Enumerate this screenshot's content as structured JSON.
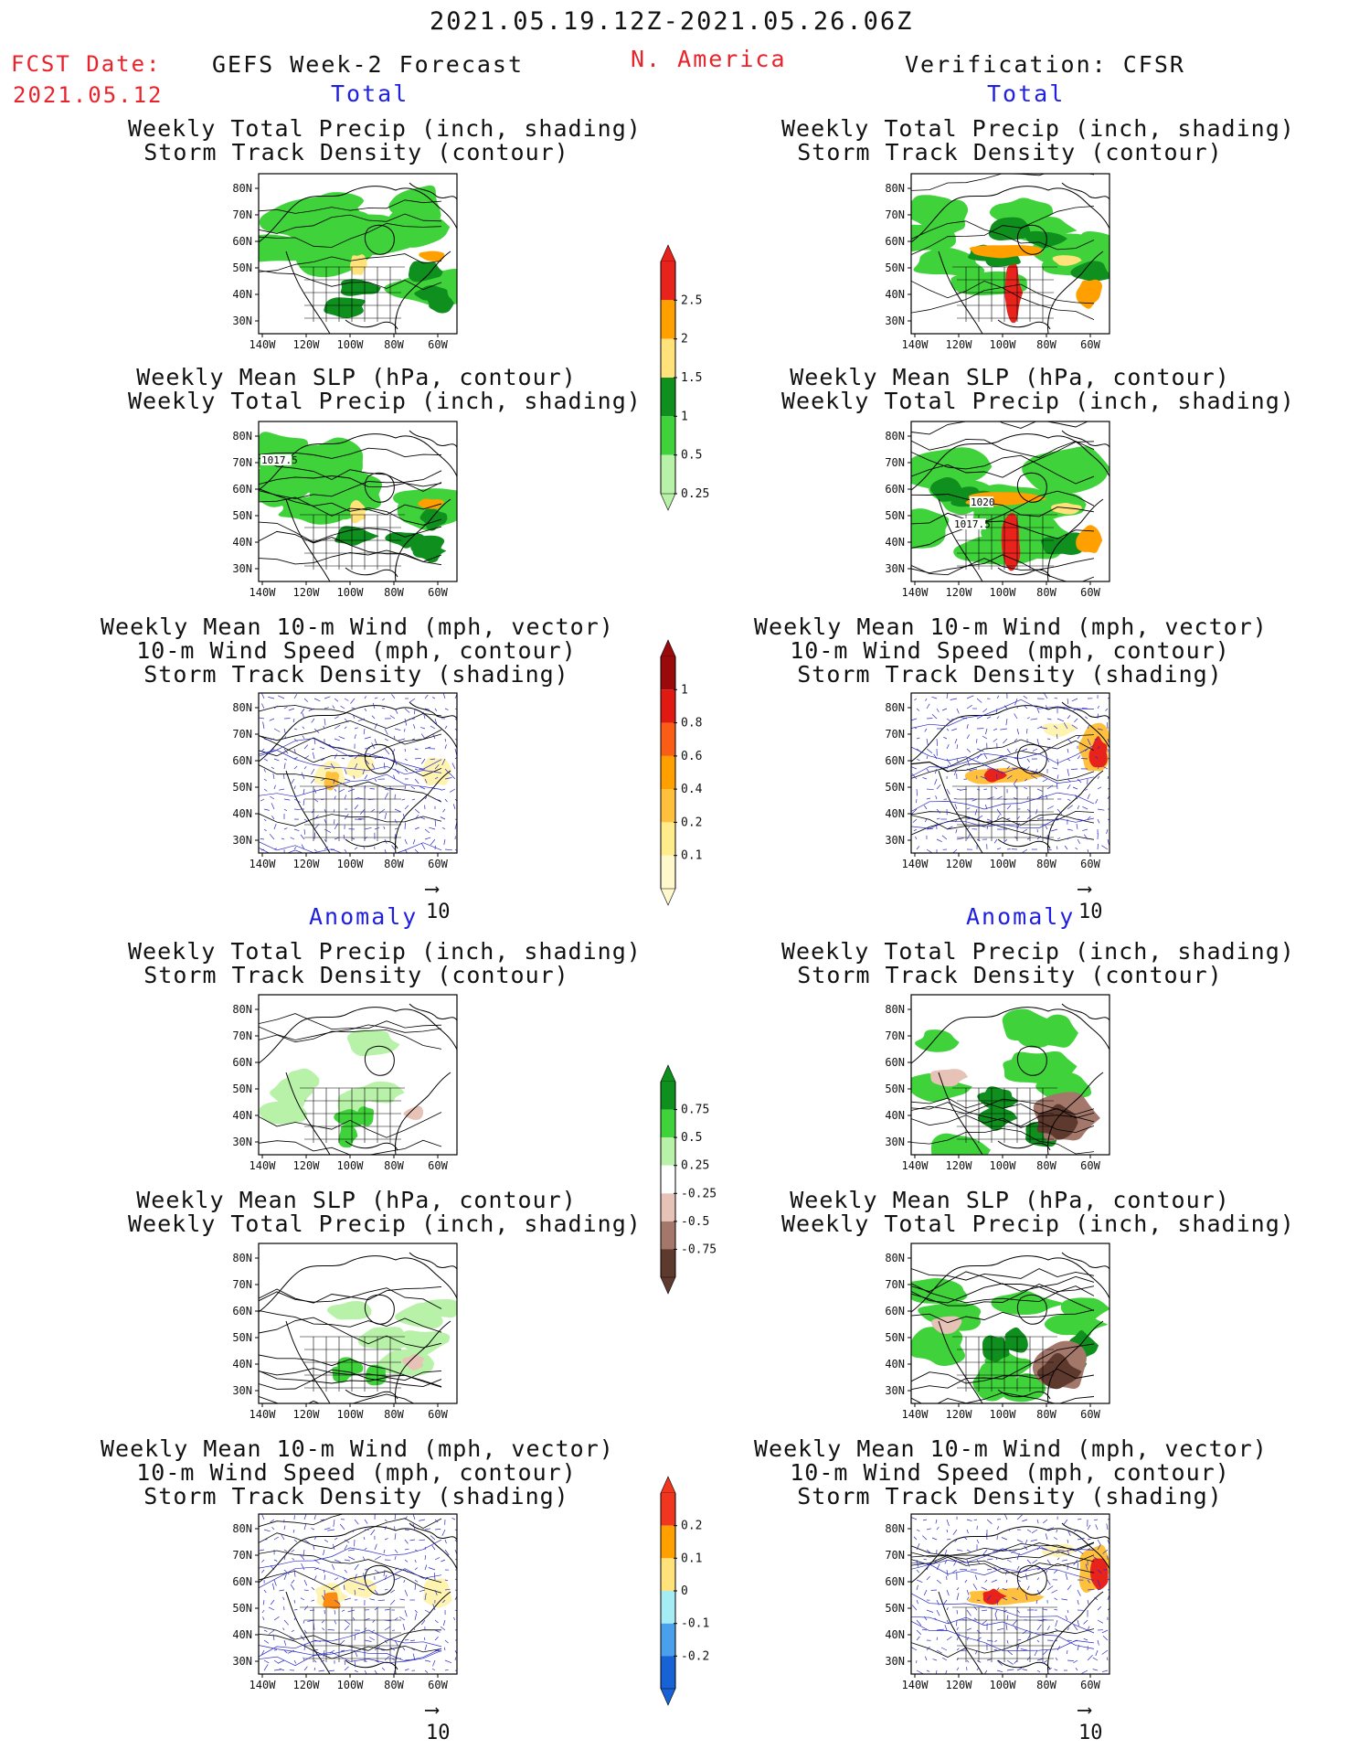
{
  "header": {
    "date_range": "2021.05.19.12Z-2021.05.26.06Z",
    "fcst_label": "FCST Date:",
    "fcst_date": "2021.05.12",
    "left_title": "GEFS Week-2 Forecast",
    "region": "N. America",
    "right_title": "Verification: CFSR"
  },
  "sections": {
    "total": "Total",
    "anomaly": "Anomaly"
  },
  "titles": {
    "precip_track": [
      "Weekly Total Precip (inch, shading)",
      "Storm Track Density (contour)"
    ],
    "slp_precip": [
      "Weekly Mean SLP (hPa, contour)",
      "Weekly Total Precip (inch, shading)"
    ],
    "wind_track": [
      "Weekly Mean 10-m Wind (mph, vector)",
      "10-m Wind Speed (mph, contour)",
      "Storm Track Density (shading)"
    ]
  },
  "axes": {
    "lat_ticks": [
      "80N",
      "70N",
      "60N",
      "50N",
      "40N",
      "30N"
    ],
    "lon_ticks": [
      "140W",
      "120W",
      "100W",
      "80W",
      "60W"
    ]
  },
  "vector_ref": "10",
  "contour_labels": {
    "fcst_slp": "1017.5",
    "ver_slp_a": "1020",
    "ver_slp_b": "1017.5"
  },
  "colorbars": {
    "precip": {
      "labels": [
        "2.5",
        "2",
        "1.5",
        "1",
        "0.5",
        "0.25"
      ],
      "colors": [
        "#e8231c",
        "#ff9f00",
        "#ffe27a",
        "#0e8f1e",
        "#3fd23a",
        "#b8f2a8"
      ]
    },
    "track": {
      "labels": [
        "1",
        "0.8",
        "0.6",
        "0.4",
        "0.2",
        "0.1"
      ],
      "colors": [
        "#9b0a0a",
        "#e01a12",
        "#fa5d16",
        "#ff9f00",
        "#ffc13d",
        "#ffec8a",
        "#fff8cc"
      ]
    },
    "precip_anom": {
      "labels": [
        "0.75",
        "0.5",
        "0.25",
        "-0.25",
        "-0.5",
        "-0.75"
      ],
      "colors": [
        "#0e8f1e",
        "#3fd23a",
        "#b8f2a8",
        "#ffffff",
        "#e6c3b6",
        "#a3776a",
        "#5e3a2e"
      ]
    },
    "track_anom": {
      "labels": [
        "0.2",
        "0.1",
        "0",
        "-0.1",
        "-0.2"
      ],
      "colors": [
        "#f1361f",
        "#ff9f00",
        "#ffe27a",
        "#a6ecf5",
        "#4aa0ea",
        "#1763d6"
      ]
    }
  }
}
